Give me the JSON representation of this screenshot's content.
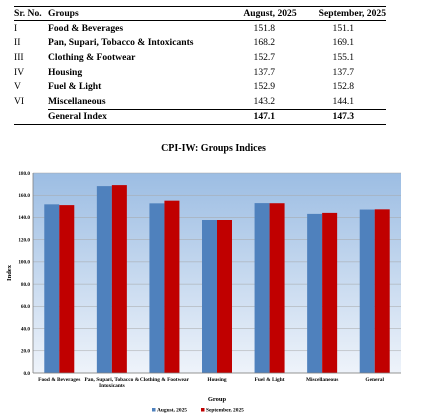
{
  "table": {
    "headers": [
      "Sr. No.",
      "Groups",
      "August, 2025",
      "September, 2025"
    ],
    "rows": [
      [
        "I",
        "Food & Beverages",
        "151.8",
        "151.1"
      ],
      [
        "II",
        "Pan, Supari, Tobacco & Intoxicants",
        "168.2",
        "169.1"
      ],
      [
        "III",
        "Clothing & Footwear",
        "152.7",
        "155.1"
      ],
      [
        "IV",
        "Housing",
        "137.7",
        "137.7"
      ],
      [
        "V",
        "Fuel & Light",
        "152.9",
        "152.8"
      ],
      [
        "VI",
        "Miscellaneous",
        "143.2",
        "144.1"
      ]
    ],
    "total": [
      "",
      "General Index",
      "147.1",
      "147.3"
    ]
  },
  "chart_data": {
    "type": "bar",
    "title": "CPI-IW: Groups Indices",
    "xlabel": "Group",
    "ylabel": "Index",
    "ylim": [
      0,
      180
    ],
    "ytick_labels": [
      "0.0",
      "20.0",
      "40.0",
      "60.0",
      "80.0",
      "100.0",
      "120.0",
      "140.0",
      "160.0",
      "180.0"
    ],
    "categories": [
      "Food & Beverages",
      "Pan, Supari, Tobacco & Intoxicants",
      "Clothing & Footwear",
      "Housing",
      "Fuel & Light",
      "Miscellaneous",
      "General"
    ],
    "series": [
      {
        "name": "August, 2025",
        "color": "#4f81bd",
        "values": [
          151.8,
          168.2,
          152.7,
          137.7,
          152.9,
          143.2,
          147.1
        ]
      },
      {
        "name": "September, 2025",
        "color": "#c00000",
        "values": [
          151.1,
          169.1,
          155.1,
          137.7,
          152.8,
          144.1,
          147.3
        ]
      }
    ],
    "grid": true,
    "legend": "bottom",
    "plot_background": "gradient light blue"
  }
}
